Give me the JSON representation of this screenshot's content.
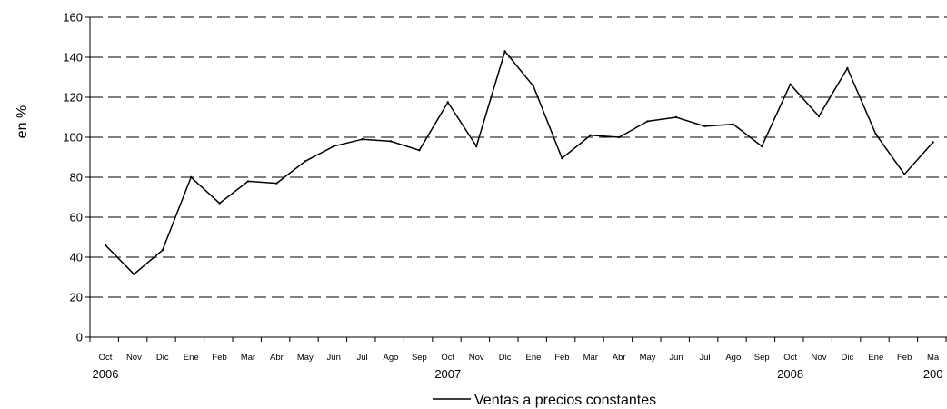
{
  "chart_data": {
    "type": "line",
    "title": "",
    "xlabel": "",
    "ylabel": "en %",
    "ylim": [
      0,
      160
    ],
    "yticks": [
      0,
      20,
      40,
      60,
      80,
      100,
      120,
      140,
      160
    ],
    "grid": "horizontal dashed",
    "legend_position": "bottom",
    "categories": [
      "Oct",
      "Nov",
      "Dic",
      "Ene",
      "Feb",
      "Mar",
      "Abr",
      "May",
      "Jun",
      "Jul",
      "Ago",
      "Sep",
      "Oct",
      "Nov",
      "Dic",
      "Ene",
      "Feb",
      "Mar",
      "Abr",
      "May",
      "Jun",
      "Jul",
      "Ago",
      "Sep",
      "Oct",
      "Nov",
      "Dic",
      "Ene",
      "Feb",
      "Ma"
    ],
    "year_labels": [
      {
        "index": 0,
        "text": "2006"
      },
      {
        "index": 12,
        "text": "2007"
      },
      {
        "index": 24,
        "text": "2008"
      },
      {
        "index": 29,
        "text": "200"
      }
    ],
    "series": [
      {
        "name": "Ventas a precios constantes",
        "color": "#000000",
        "values": [
          46,
          31.5,
          43.5,
          80,
          67,
          78,
          77,
          88,
          95.5,
          99,
          98,
          93.5,
          117.5,
          95.5,
          143,
          125.5,
          89.5,
          101,
          100,
          108,
          110,
          105.5,
          106.5,
          95.5,
          126.5,
          110.5,
          134.5,
          101.5,
          81.5,
          97.5
        ]
      }
    ]
  }
}
